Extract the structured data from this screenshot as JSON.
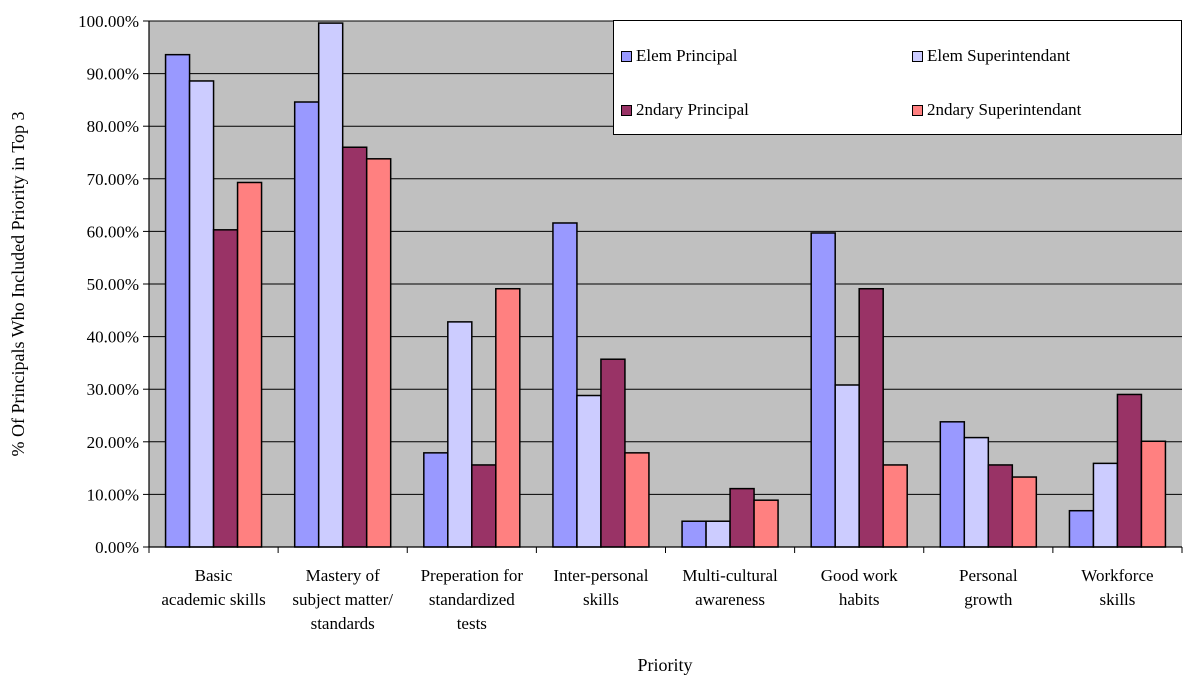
{
  "chart_data": {
    "type": "bar",
    "ylabel": "% Of Principals Who Included Priority in Top 3",
    "xlabel": "Priority",
    "ylim": [
      0,
      100
    ],
    "yticks": [
      "0.00%",
      "10.00%",
      "20.00%",
      "30.00%",
      "40.00%",
      "50.00%",
      "60.00%",
      "70.00%",
      "80.00%",
      "90.00%",
      "100.00%"
    ],
    "grid": true,
    "legend_position": "top-right",
    "plot_background": "#c0c0c0",
    "categories": [
      [
        "Basic",
        "academic skills"
      ],
      [
        "Mastery of",
        "subject matter/",
        "standards"
      ],
      [
        "Preperation for",
        "standardized",
        "tests"
      ],
      [
        "Inter-personal",
        "skills"
      ],
      [
        "Multi-cultural",
        "awareness"
      ],
      [
        "Good work",
        "habits"
      ],
      [
        "Personal",
        "growth"
      ],
      [
        "Workforce",
        "skills"
      ]
    ],
    "series": [
      {
        "name": "Elem Principal",
        "color": "#9999ff",
        "values": [
          93.6,
          84.6,
          17.9,
          61.6,
          4.9,
          59.7,
          23.8,
          6.9
        ]
      },
      {
        "name": "Elem Superintendant",
        "color": "#ccccff",
        "values": [
          88.6,
          99.6,
          42.8,
          28.8,
          4.9,
          30.8,
          20.8,
          15.9
        ]
      },
      {
        "name": "2ndary Principal",
        "color": "#993366",
        "values": [
          60.3,
          76.0,
          15.6,
          35.7,
          11.1,
          49.1,
          15.6,
          29.0
        ]
      },
      {
        "name": "2ndary Superintendant",
        "color": "#ff8080",
        "values": [
          69.3,
          73.8,
          49.1,
          17.9,
          8.9,
          15.6,
          13.3,
          20.1
        ]
      }
    ]
  }
}
